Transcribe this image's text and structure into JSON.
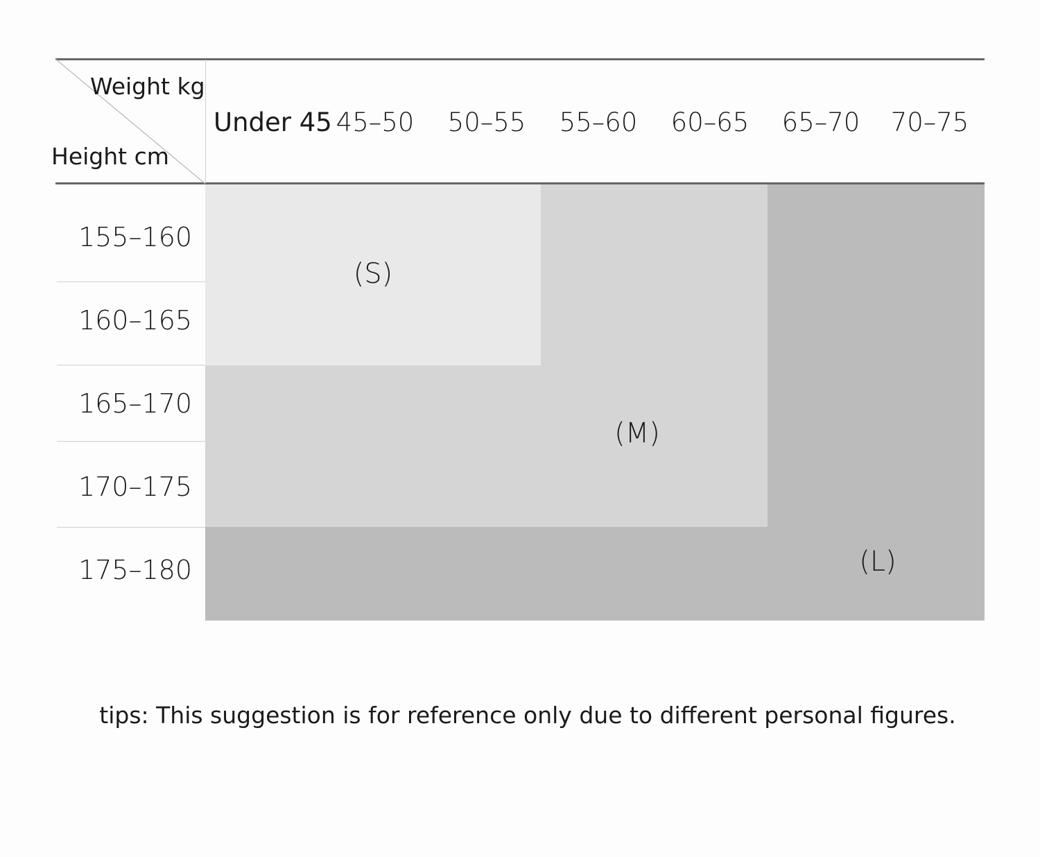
{
  "corner": {
    "weight_label": "Weight kg",
    "height_label": "Height cm"
  },
  "columns": [
    "Under 45",
    "45–50",
    "50–55",
    "55–60",
    "60–65",
    "65–70",
    "70–75"
  ],
  "rows": [
    "155–160",
    "160–165",
    "165–170",
    "170–175",
    "175–180"
  ],
  "sizes": {
    "S": {
      "label": "(S)",
      "color": "#e9e9e9",
      "rows": [
        "155–160",
        "160–165"
      ],
      "columns": [
        "Under 45",
        "45–50",
        "50–55"
      ]
    },
    "M": {
      "label": "(M)",
      "color": "#d5d5d5",
      "rows": [
        "155–170 (excluding S)",
        "165–170",
        "170–175"
      ],
      "columns": [
        "Under 45",
        "45–50",
        "50–55",
        "55–60",
        "60–65"
      ]
    },
    "L": {
      "label": "(L)",
      "color": "#bbbbbb",
      "rows": [
        "155–180 (remaining)",
        "175–180"
      ],
      "columns": [
        "65–70",
        "70–75"
      ]
    }
  },
  "tips": "tips: This suggestion is for reference only due to different personal figures."
}
